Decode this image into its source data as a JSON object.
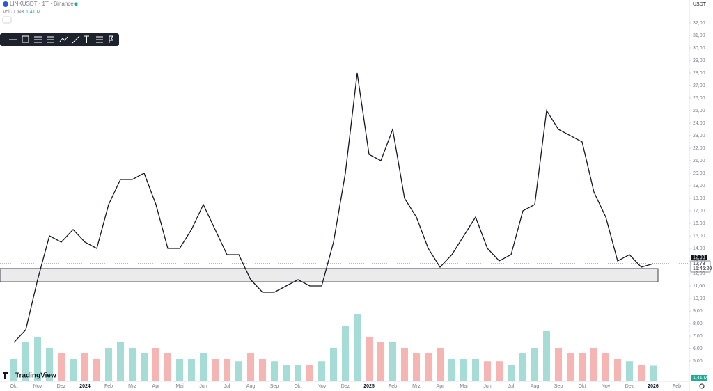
{
  "header": {
    "symbol": "LINKUSDT · 1T · Binance",
    "vol_label": "Vol · LINK",
    "vol_value": "1,41 M"
  },
  "axis_currency": "USDT",
  "badges": {
    "price_line": "12,93",
    "last_price": "12,78",
    "countdown": "15:46:20",
    "volume": "1,41 M"
  },
  "brand": "TradingView",
  "chart_data": {
    "type": "line",
    "categories": [
      "Okt",
      null,
      "Nov",
      null,
      "Dez",
      null,
      "2024",
      null,
      "Feb",
      null,
      "Mrz",
      null,
      "Apr",
      null,
      "Mai",
      null,
      "Jun",
      null,
      "Jul",
      null,
      "Aug",
      null,
      "Sep",
      null,
      "Okt",
      null,
      "Nov",
      null,
      "Dez",
      null,
      "2025",
      null,
      "Feb",
      null,
      "Mrz",
      null,
      "Apr",
      null,
      "Mai",
      null,
      "Jun",
      null,
      "Jul",
      null,
      "Aug",
      null,
      "Sep",
      null,
      "Okt",
      null,
      "Nov",
      null,
      "Dez",
      null,
      "2026",
      null,
      "Feb"
    ],
    "series": [
      {
        "name": "LINKUSDT",
        "color": "#131722",
        "values": [
          6.5,
          7.5,
          11.5,
          15.0,
          14.5,
          15.5,
          14.5,
          14.0,
          17.5,
          19.5,
          19.5,
          20.0,
          17.5,
          14.0,
          14.0,
          15.5,
          17.5,
          15.5,
          13.5,
          13.5,
          11.5,
          10.5,
          10.5,
          11.0,
          11.5,
          11.0,
          11.0,
          14.5,
          20.0,
          28.0,
          21.5,
          21.0,
          23.5,
          18.0,
          16.5,
          14.0,
          12.5,
          13.5,
          15.0,
          16.5,
          14.0,
          13.0,
          13.5,
          17.0,
          17.5,
          25.0,
          23.5,
          23.0,
          22.5,
          18.5,
          16.5,
          13.0,
          13.5,
          12.5,
          12.78,
          null,
          null
        ]
      },
      {
        "name": "Vol",
        "axis": "volume",
        "color_up": "#a6dcd6",
        "color_down": "#f5b5b3",
        "values": [
          2.0,
          3.5,
          4.0,
          3.0,
          2.5,
          2.0,
          2.5,
          2.0,
          3.0,
          3.5,
          3.0,
          2.5,
          3.0,
          2.5,
          2.0,
          2.0,
          2.5,
          2.0,
          2.0,
          1.8,
          2.5,
          2.0,
          1.8,
          1.5,
          1.5,
          1.5,
          1.8,
          3.0,
          5.0,
          6.0,
          4.0,
          3.5,
          3.5,
          3.0,
          2.5,
          2.5,
          3.0,
          2.0,
          2.0,
          2.0,
          1.8,
          1.8,
          1.5,
          2.5,
          3.0,
          4.5,
          3.0,
          2.5,
          2.5,
          3.0,
          2.5,
          2.0,
          1.8,
          1.5,
          1.41,
          null,
          null
        ]
      }
    ],
    "zone": {
      "from": 11.33,
      "to": 12.39
    },
    "ylim": [
      3.39,
      33.83
    ],
    "yticks": [
      {
        "value": 5,
        "label": "5,00"
      },
      {
        "value": 6,
        "label": "6,00"
      },
      {
        "value": 7,
        "label": "7,00"
      },
      {
        "value": 8,
        "label": "8,00"
      },
      {
        "value": 9,
        "label": "9,00"
      },
      {
        "value": 10,
        "label": "10,00"
      },
      {
        "value": 11,
        "label": "11,00"
      },
      {
        "value": 12,
        "label": "12,00"
      },
      {
        "value": 13,
        "label": "13,00"
      },
      {
        "value": 14,
        "label": "14,00"
      },
      {
        "value": 15,
        "label": "15,00"
      },
      {
        "value": 16,
        "label": "16,00"
      },
      {
        "value": 17,
        "label": "17,00"
      },
      {
        "value": 18,
        "label": "18,00"
      },
      {
        "value": 19,
        "label": "19,00"
      },
      {
        "value": 20,
        "label": "20,00"
      },
      {
        "value": 21,
        "label": "21,00"
      },
      {
        "value": 22,
        "label": "22,00"
      },
      {
        "value": 23,
        "label": "23,00"
      },
      {
        "value": 24,
        "label": "24,00"
      },
      {
        "value": 25,
        "label": "25,00"
      },
      {
        "value": 26,
        "label": "26,00"
      },
      {
        "value": 27,
        "label": "27,00"
      },
      {
        "value": 28,
        "label": "28,00"
      },
      {
        "value": 29,
        "label": "29,00"
      },
      {
        "value": 30,
        "label": "30,00"
      },
      {
        "value": 31,
        "label": "31,00"
      },
      {
        "value": 32,
        "label": "32,00"
      }
    ],
    "grid": false
  }
}
